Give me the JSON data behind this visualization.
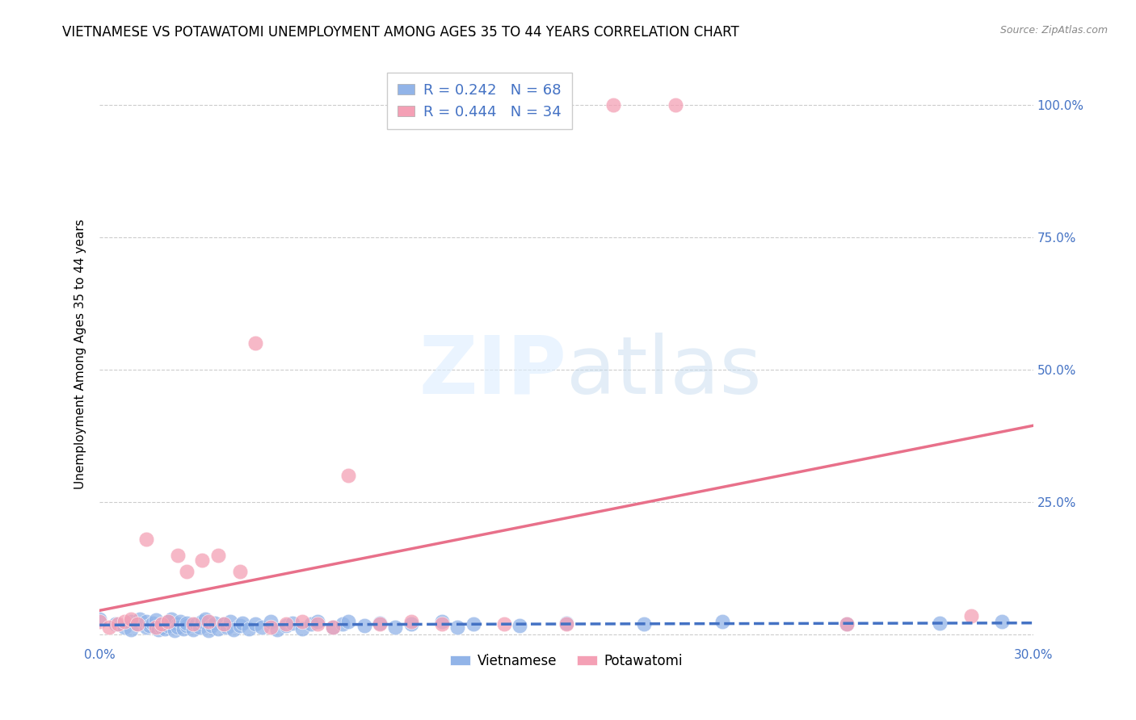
{
  "title": "VIETNAMESE VS POTAWATOMI UNEMPLOYMENT AMONG AGES 35 TO 44 YEARS CORRELATION CHART",
  "source": "Source: ZipAtlas.com",
  "ylabel": "Unemployment Among Ages 35 to 44 years",
  "xlim": [
    0.0,
    0.3
  ],
  "ylim": [
    -0.02,
    1.08
  ],
  "yticks": [
    0.0,
    0.25,
    0.5,
    0.75,
    1.0
  ],
  "ytick_labels": [
    "",
    "25.0%",
    "50.0%",
    "75.0%",
    "100.0%"
  ],
  "xtick_positions": [
    0.0,
    0.05,
    0.1,
    0.15,
    0.2,
    0.25,
    0.3
  ],
  "legend_R_vietnamese": "R = 0.242",
  "legend_N_vietnamese": "N = 68",
  "legend_R_potawatomi": "R = 0.444",
  "legend_N_potawatomi": "N = 34",
  "vietnamese_color": "#92b4e8",
  "potawatomi_color": "#f4a0b5",
  "vietnamese_line_color": "#4472c4",
  "potawatomi_line_color": "#e8708a",
  "title_fontsize": 12,
  "axis_label_fontsize": 11,
  "tick_fontsize": 11,
  "viet_label": "Vietnamese",
  "pota_label": "Potawatomi",
  "vietnamese_x": [
    0.0,
    0.005,
    0.008,
    0.01,
    0.01,
    0.012,
    0.013,
    0.015,
    0.015,
    0.016,
    0.017,
    0.018,
    0.019,
    0.02,
    0.02,
    0.021,
    0.022,
    0.022,
    0.023,
    0.024,
    0.025,
    0.025,
    0.026,
    0.027,
    0.028,
    0.028,
    0.03,
    0.031,
    0.032,
    0.033,
    0.034,
    0.035,
    0.036,
    0.037,
    0.038,
    0.04,
    0.041,
    0.042,
    0.043,
    0.045,
    0.046,
    0.048,
    0.05,
    0.052,
    0.055,
    0.057,
    0.06,
    0.062,
    0.065,
    0.068,
    0.07,
    0.075,
    0.078,
    0.08,
    0.085,
    0.09,
    0.095,
    0.1,
    0.11,
    0.115,
    0.12,
    0.135,
    0.15,
    0.175,
    0.2,
    0.24,
    0.27,
    0.29
  ],
  "vietnamese_y": [
    0.03,
    0.02,
    0.015,
    0.025,
    0.01,
    0.02,
    0.03,
    0.015,
    0.025,
    0.018,
    0.022,
    0.028,
    0.01,
    0.015,
    0.02,
    0.012,
    0.018,
    0.025,
    0.03,
    0.008,
    0.02,
    0.015,
    0.025,
    0.012,
    0.018,
    0.022,
    0.01,
    0.02,
    0.015,
    0.025,
    0.03,
    0.008,
    0.018,
    0.022,
    0.012,
    0.02,
    0.015,
    0.025,
    0.01,
    0.018,
    0.022,
    0.012,
    0.02,
    0.015,
    0.025,
    0.01,
    0.018,
    0.022,
    0.012,
    0.02,
    0.025,
    0.015,
    0.02,
    0.025,
    0.018,
    0.022,
    0.015,
    0.02,
    0.025,
    0.015,
    0.02,
    0.018,
    0.022,
    0.02,
    0.025,
    0.02,
    0.022,
    0.025
  ],
  "potawatomi_x": [
    0.0,
    0.003,
    0.006,
    0.008,
    0.01,
    0.012,
    0.015,
    0.018,
    0.02,
    0.022,
    0.025,
    0.028,
    0.03,
    0.033,
    0.035,
    0.038,
    0.04,
    0.045,
    0.05,
    0.055,
    0.06,
    0.065,
    0.07,
    0.075,
    0.08,
    0.09,
    0.1,
    0.11,
    0.13,
    0.15,
    0.165,
    0.185,
    0.24,
    0.28
  ],
  "potawatomi_y": [
    0.025,
    0.015,
    0.02,
    0.025,
    0.03,
    0.02,
    0.18,
    0.015,
    0.02,
    0.025,
    0.15,
    0.12,
    0.02,
    0.14,
    0.025,
    0.15,
    0.02,
    0.12,
    0.55,
    0.015,
    0.02,
    0.025,
    0.02,
    0.015,
    0.3,
    0.02,
    0.025,
    0.02,
    0.02,
    0.02,
    1.0,
    1.0,
    0.02,
    0.035
  ]
}
